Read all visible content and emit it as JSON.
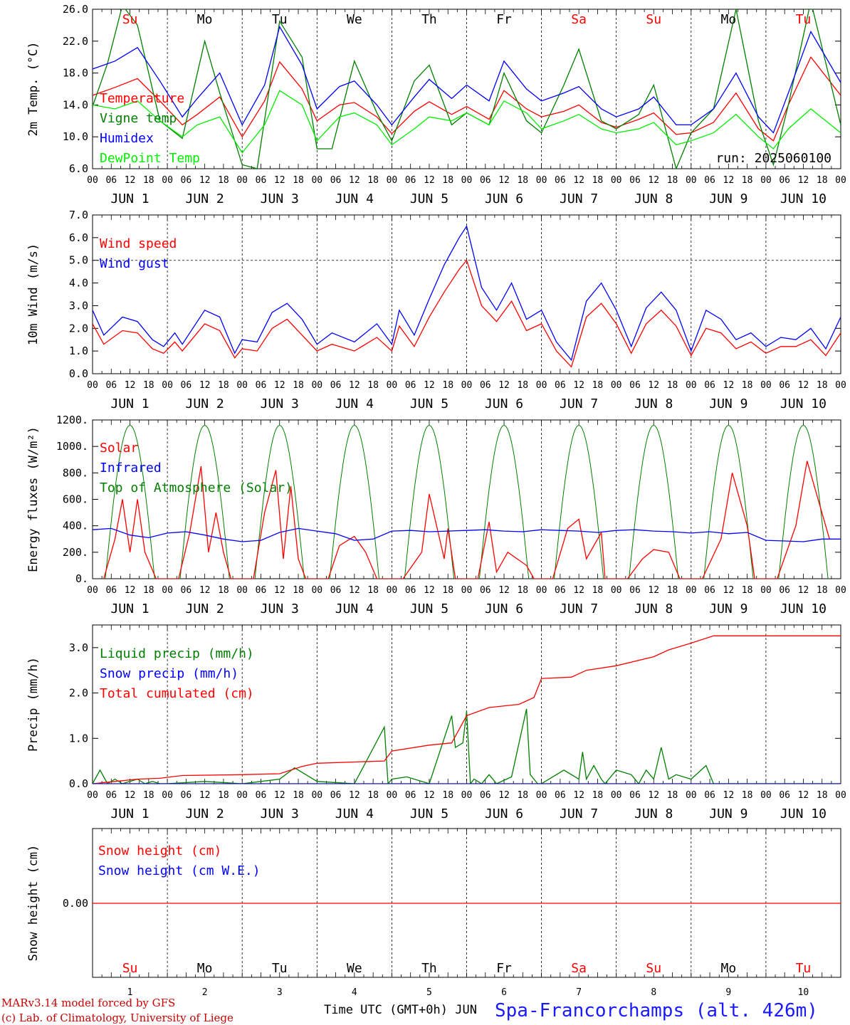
{
  "station": "Spa-Francorchamps (alt. 426m)",
  "run_label": "run: 2025060100",
  "footer": {
    "model": "MARv3.14 model forced by GFS",
    "credit": "(c) Lab. of Climatology, University of Liege",
    "xlabel": "Time UTC (GMT+0h) JUN"
  },
  "days": [
    "Su",
    "Mo",
    "Tu",
    "We",
    "Th",
    "Fr",
    "Sa",
    "Su",
    "Mo",
    "Tu"
  ],
  "weekend_days": [
    0,
    6,
    7,
    9
  ],
  "dates": [
    "JUN  1",
    "JUN  2",
    "JUN  3",
    "JUN  4",
    "JUN  5",
    "JUN  6",
    "JUN  7",
    "JUN  8",
    "JUN  9",
    "JUN 10"
  ],
  "day_numbers": [
    "1",
    "2",
    "3",
    "4",
    "5",
    "6",
    "7",
    "8",
    "9",
    "10"
  ],
  "hour_ticks": [
    "00",
    "06",
    "12",
    "18"
  ],
  "colors": {
    "red": "#ff0000",
    "green": "#007f00",
    "blue": "#0000ff",
    "lime": "#00ee00",
    "station": "#1a1aff"
  },
  "chart_data": [
    {
      "id": "temperature",
      "type": "line",
      "ylabel": "2m Temp. (°C)",
      "ylim": [
        6,
        26
      ],
      "yticks": [
        "6.0",
        "10.0",
        "14.0",
        "18.0",
        "22.0",
        "26.0"
      ],
      "x_unit": "days since JUN 1 00 UTC",
      "legend": [
        "Temperature",
        "Vigne temp",
        "Humidex",
        "DewPoint Temp"
      ],
      "series": [
        {
          "name": "Temperature",
          "color": "red",
          "x": [
            0,
            0.3,
            0.6,
            0.9,
            1.2,
            1.4,
            1.7,
            2.0,
            2.3,
            2.5,
            2.8,
            3.0,
            3.3,
            3.5,
            3.8,
            4.0,
            4.3,
            4.5,
            4.8,
            5.0,
            5.3,
            5.5,
            5.8,
            6.0,
            6.3,
            6.5,
            6.8,
            7.0,
            7.3,
            7.5,
            7.8,
            8.0,
            8.3,
            8.6,
            8.9,
            9.1,
            9.3,
            9.6,
            10.0
          ],
          "values": [
            15.2,
            16.2,
            17.3,
            14.5,
            11.5,
            12.8,
            15.0,
            10.0,
            14.5,
            19.4,
            16.0,
            12.0,
            14.0,
            14.3,
            12.5,
            10.4,
            13.2,
            14.4,
            12.8,
            13.8,
            12.2,
            15.8,
            13.5,
            12.5,
            13.2,
            14.0,
            11.8,
            11.2,
            12.2,
            13.0,
            10.3,
            10.5,
            11.8,
            15.5,
            11.0,
            9.5,
            14.0,
            20.0,
            15.2
          ]
        },
        {
          "name": "Vigne temp",
          "color": "green",
          "x": [
            0,
            0.2,
            0.4,
            0.6,
            0.9,
            1.2,
            1.5,
            1.7,
            2.0,
            2.2,
            2.5,
            2.8,
            3.0,
            3.2,
            3.5,
            3.8,
            4.0,
            4.3,
            4.5,
            4.8,
            5.0,
            5.3,
            5.5,
            5.8,
            6.0,
            6.3,
            6.5,
            6.8,
            7.0,
            7.3,
            7.5,
            7.8,
            8.0,
            8.3,
            8.6,
            8.9,
            9.1,
            9.3,
            9.6,
            10.0
          ],
          "values": [
            13.8,
            19.2,
            26.5,
            24.0,
            12.0,
            9.8,
            22.0,
            15.5,
            6.5,
            6.0,
            24.5,
            20.0,
            8.5,
            8.5,
            19.5,
            13.0,
            9.5,
            17.0,
            19.0,
            11.5,
            13.0,
            11.5,
            18.0,
            12.0,
            10.5,
            16.5,
            21.0,
            12.0,
            11.0,
            12.8,
            16.5,
            6.0,
            10.5,
            13.5,
            26.0,
            12.0,
            6.5,
            14.0,
            27.0,
            11.5
          ]
        },
        {
          "name": "Humidex",
          "color": "blue",
          "x": [
            0,
            0.3,
            0.6,
            0.9,
            1.2,
            1.4,
            1.7,
            2.0,
            2.3,
            2.5,
            2.8,
            3.0,
            3.3,
            3.5,
            3.8,
            4.0,
            4.3,
            4.5,
            4.8,
            5.0,
            5.3,
            5.5,
            5.8,
            6.0,
            6.3,
            6.5,
            6.8,
            7.0,
            7.3,
            7.5,
            7.8,
            8.0,
            8.3,
            8.6,
            8.9,
            9.1,
            9.3,
            9.6,
            10.0
          ],
          "values": [
            18.5,
            19.5,
            21.2,
            17.0,
            12.5,
            14.8,
            18.0,
            11.5,
            16.5,
            23.8,
            19.0,
            13.5,
            16.3,
            17.0,
            14.0,
            11.5,
            15.0,
            17.2,
            14.8,
            16.5,
            14.5,
            19.5,
            16.0,
            14.5,
            15.5,
            16.3,
            13.5,
            12.5,
            13.5,
            15.0,
            11.5,
            11.5,
            13.5,
            18.0,
            12.5,
            10.5,
            15.5,
            23.2,
            16.8
          ]
        },
        {
          "name": "DewPoint Temp",
          "color": "lime",
          "x": [
            0,
            0.3,
            0.6,
            0.9,
            1.2,
            1.4,
            1.7,
            2.0,
            2.3,
            2.5,
            2.8,
            3.0,
            3.3,
            3.5,
            3.8,
            4.0,
            4.3,
            4.5,
            4.8,
            5.0,
            5.3,
            5.5,
            5.8,
            6.0,
            6.3,
            6.5,
            6.8,
            7.0,
            7.3,
            7.5,
            7.8,
            8.0,
            8.3,
            8.6,
            8.9,
            9.1,
            9.3,
            9.6,
            10.0
          ],
          "values": [
            14.0,
            13.5,
            14.5,
            12.0,
            10.0,
            11.5,
            12.5,
            8.0,
            11.5,
            15.8,
            14.0,
            9.5,
            12.5,
            13.0,
            11.5,
            9.0,
            11.0,
            12.5,
            12.0,
            13.0,
            11.5,
            14.5,
            13.0,
            11.0,
            12.0,
            12.8,
            11.0,
            10.5,
            11.0,
            11.8,
            9.0,
            9.5,
            10.5,
            12.8,
            10.0,
            8.5,
            11.0,
            13.5,
            10.5
          ]
        }
      ]
    },
    {
      "id": "wind",
      "type": "line",
      "ylabel": "10m Wind (m/s)",
      "ylim": [
        0,
        7
      ],
      "yticks": [
        "0.0",
        "1.0",
        "2.0",
        "3.0",
        "4.0",
        "5.0",
        "6.0",
        "7.0"
      ],
      "ref_line": 5.0,
      "legend": [
        "Wind speed",
        "Wind gust"
      ],
      "series": [
        {
          "name": "Wind speed",
          "color": "red",
          "x": [
            0,
            0.15,
            0.4,
            0.6,
            0.8,
            0.95,
            1.1,
            1.2,
            1.5,
            1.7,
            1.9,
            2.0,
            2.2,
            2.4,
            2.6,
            2.8,
            3.0,
            3.2,
            3.5,
            3.8,
            4.0,
            4.1,
            4.3,
            4.5,
            4.7,
            4.9,
            5.0,
            5.2,
            5.4,
            5.6,
            5.8,
            6.0,
            6.2,
            6.4,
            6.6,
            6.8,
            7.0,
            7.2,
            7.4,
            7.6,
            7.8,
            8.0,
            8.2,
            8.4,
            8.6,
            8.8,
            9.0,
            9.2,
            9.4,
            9.6,
            9.8,
            10.0
          ],
          "values": [
            2.2,
            1.3,
            1.9,
            1.8,
            1.1,
            0.9,
            1.4,
            1.0,
            2.2,
            1.9,
            0.7,
            1.1,
            1.0,
            2.0,
            2.4,
            1.7,
            1.0,
            1.3,
            1.0,
            1.6,
            1.0,
            2.1,
            1.2,
            2.5,
            3.6,
            4.6,
            5.0,
            3.0,
            2.3,
            3.2,
            1.9,
            2.2,
            1.0,
            0.3,
            2.5,
            3.1,
            2.2,
            0.9,
            2.2,
            2.8,
            2.1,
            0.8,
            2.0,
            1.8,
            1.1,
            1.4,
            0.9,
            1.2,
            1.2,
            1.5,
            0.8,
            1.8
          ]
        },
        {
          "name": "Wind gust",
          "color": "blue",
          "x": [
            0,
            0.15,
            0.4,
            0.6,
            0.8,
            0.95,
            1.1,
            1.2,
            1.5,
            1.7,
            1.9,
            2.0,
            2.2,
            2.4,
            2.6,
            2.8,
            3.0,
            3.2,
            3.5,
            3.8,
            4.0,
            4.1,
            4.3,
            4.5,
            4.7,
            4.9,
            5.0,
            5.2,
            5.4,
            5.6,
            5.8,
            6.0,
            6.2,
            6.4,
            6.6,
            6.8,
            7.0,
            7.2,
            7.4,
            7.6,
            7.8,
            8.0,
            8.2,
            8.4,
            8.6,
            8.8,
            9.0,
            9.2,
            9.4,
            9.6,
            9.8,
            10.0
          ],
          "values": [
            2.8,
            1.7,
            2.5,
            2.3,
            1.5,
            1.2,
            1.8,
            1.3,
            2.8,
            2.5,
            0.9,
            1.5,
            1.4,
            2.7,
            3.1,
            2.4,
            1.3,
            1.8,
            1.4,
            2.2,
            1.3,
            2.8,
            1.7,
            3.3,
            4.8,
            6.0,
            6.5,
            3.8,
            2.8,
            4.0,
            2.4,
            2.8,
            1.4,
            0.6,
            3.2,
            4.0,
            2.8,
            1.2,
            2.9,
            3.6,
            2.8,
            1.0,
            2.8,
            2.4,
            1.5,
            1.8,
            1.2,
            1.6,
            1.5,
            2.0,
            1.1,
            2.5
          ]
        }
      ]
    },
    {
      "id": "energy",
      "type": "line",
      "ylabel": "Energy fluxes (W/m²)",
      "ylim": [
        0,
        1200
      ],
      "yticks": [
        "0.",
        "200.",
        "400.",
        "600.",
        "800.",
        "1000.",
        "1200."
      ],
      "legend": [
        "Solar",
        "Infrared",
        "Top of Atmosphere (Solar)"
      ],
      "toa_peak": 1160,
      "series": [
        {
          "name": "Solar",
          "color": "red",
          "x": [
            0.15,
            0.3,
            0.4,
            0.5,
            0.6,
            0.7,
            0.85,
            1.15,
            1.3,
            1.45,
            1.55,
            1.65,
            1.75,
            1.85,
            2.15,
            2.3,
            2.45,
            2.55,
            2.65,
            2.75,
            2.85,
            3.15,
            3.3,
            3.5,
            3.65,
            3.8,
            4.15,
            4.4,
            4.5,
            4.7,
            4.75,
            4.85,
            5.15,
            5.3,
            5.4,
            5.55,
            5.8,
            5.9,
            6.15,
            6.35,
            6.5,
            6.6,
            6.8,
            6.85,
            7.15,
            7.35,
            7.5,
            7.7,
            7.85,
            8.15,
            8.4,
            8.55,
            8.75,
            8.85,
            9.15,
            9.4,
            9.55,
            9.85
          ],
          "values": [
            0,
            300,
            600,
            200,
            600,
            200,
            0,
            0,
            350,
            850,
            200,
            500,
            200,
            0,
            0,
            500,
            820,
            150,
            700,
            150,
            0,
            0,
            250,
            320,
            200,
            0,
            0,
            200,
            640,
            150,
            380,
            0,
            0,
            430,
            50,
            200,
            100,
            0,
            0,
            380,
            450,
            150,
            350,
            0,
            0,
            150,
            220,
            200,
            0,
            0,
            300,
            800,
            400,
            0,
            0,
            400,
            890,
            300
          ]
        },
        {
          "name": "Infrared",
          "color": "blue",
          "values": [
            370,
            380,
            330,
            310,
            345,
            355,
            330,
            300,
            280,
            290,
            350,
            380,
            360,
            340,
            290,
            300,
            360,
            365,
            355,
            360,
            365,
            370,
            360,
            355,
            370,
            365,
            360,
            350,
            365,
            370,
            360,
            355,
            345,
            355,
            340,
            350,
            290,
            285,
            280,
            300,
            300
          ]
        }
      ]
    },
    {
      "id": "precip",
      "type": "line",
      "ylabel": "Precip (mm/h)",
      "ylim": [
        0,
        3.5
      ],
      "yticks": [
        "0.0",
        "1.0",
        "2.0",
        "3.0"
      ],
      "legend": [
        "Liquid precip (mm/h)",
        "Snow precip (mm/h)",
        "Total cumulated (cm)"
      ],
      "series": [
        {
          "name": "Liquid precip (mm/h)",
          "color": "green",
          "x": [
            0,
            0.1,
            0.2,
            0.3,
            0.4,
            0.5,
            0.6,
            0.7,
            0.8,
            0.9,
            1.0,
            1.5,
            2.0,
            2.5,
            2.7,
            2.9,
            3.0,
            3.5,
            3.9,
            3.95,
            4.0,
            4.2,
            4.5,
            4.8,
            4.85,
            4.95,
            5.0,
            5.05,
            5.1,
            5.2,
            5.3,
            5.4,
            5.6,
            5.8,
            5.85,
            5.95,
            6.0,
            6.3,
            6.5,
            6.55,
            6.6,
            6.7,
            6.8,
            6.85,
            7.0,
            7.2,
            7.3,
            7.4,
            7.5,
            7.6,
            7.7,
            7.8,
            8.0,
            8.2,
            8.3,
            8.4,
            8.5,
            9.0,
            10.0
          ],
          "values": [
            0,
            0.3,
            0.0,
            0.1,
            0.0,
            0.05,
            0.1,
            0.0,
            0.05,
            0.0,
            0.0,
            0.05,
            0.0,
            0.1,
            0.35,
            0.15,
            0.05,
            0.0,
            1.25,
            0.0,
            0.1,
            0.15,
            0.0,
            1.5,
            0.8,
            0.9,
            1.6,
            0.0,
            0.1,
            0.0,
            0.2,
            0.0,
            0.15,
            1.65,
            0.2,
            0.0,
            0.0,
            0.3,
            0.1,
            0.7,
            0.1,
            0.4,
            0.1,
            0.0,
            0.3,
            0.2,
            0.0,
            0.3,
            0.1,
            0.8,
            0.1,
            0.2,
            0.1,
            0.4,
            0.0,
            0.0,
            0.0,
            0.0,
            0.0
          ]
        },
        {
          "name": "Total cumulated (cm)",
          "color": "red",
          "x": [
            0,
            0.3,
            0.6,
            0.9,
            1.2,
            2.0,
            2.5,
            2.8,
            3.0,
            3.9,
            4.0,
            4.5,
            4.8,
            5.0,
            5.3,
            5.7,
            5.9,
            6.0,
            6.4,
            6.6,
            7.0,
            7.5,
            7.7,
            8.0,
            8.3,
            10.0
          ],
          "values": [
            0,
            0.05,
            0.1,
            0.12,
            0.18,
            0.2,
            0.22,
            0.38,
            0.45,
            0.5,
            0.72,
            0.85,
            0.9,
            1.5,
            1.68,
            1.75,
            1.9,
            2.32,
            2.35,
            2.5,
            2.6,
            2.8,
            2.95,
            3.1,
            3.26,
            3.26
          ]
        },
        {
          "name": "Snow precip (mm/h)",
          "color": "blue",
          "x": [
            0,
            10
          ],
          "values": [
            0,
            0
          ]
        }
      ]
    },
    {
      "id": "snow",
      "type": "line",
      "ylabel": "Snow height (cm)",
      "yticks": [
        "0.00"
      ],
      "legend": [
        "Snow height (cm)",
        "Snow height (cm W.E.)"
      ],
      "series": [
        {
          "name": "Snow height (cm)",
          "color": "red",
          "x": [
            0,
            10
          ],
          "values": [
            0,
            0
          ]
        }
      ]
    }
  ]
}
